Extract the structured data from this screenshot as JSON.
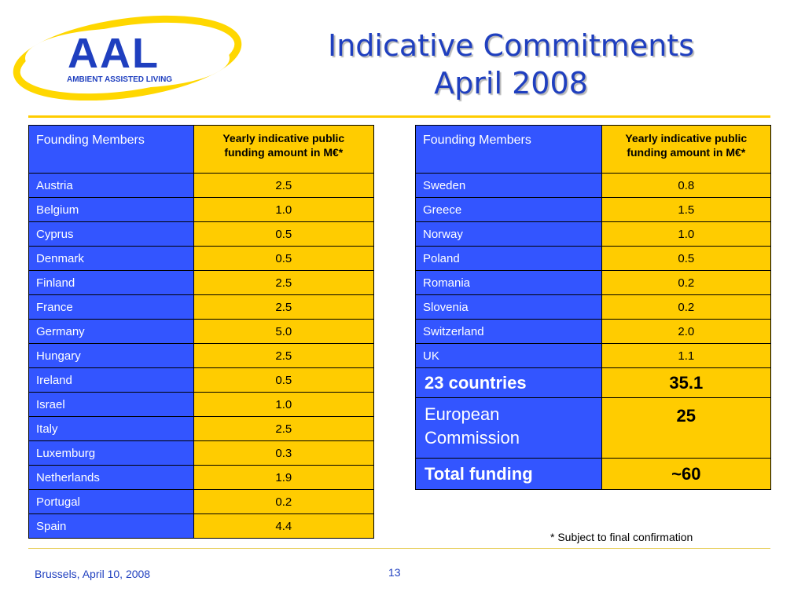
{
  "logo": {
    "text": "AAL",
    "tagline": "AMBIENT ASSISTED LIVING",
    "colors": {
      "blue": "#1f3fbf",
      "yellow": "#ffd700"
    }
  },
  "title": {
    "line1": "Indicative Commitments",
    "line2": "April 2008"
  },
  "table_header": {
    "col1": "Founding Members",
    "col2_line1": "Yearly indicative public",
    "col2_line2": "funding amount in M€*"
  },
  "left_table": [
    {
      "country": "Austria",
      "amount": "2.5"
    },
    {
      "country": "Belgium",
      "amount": "1.0"
    },
    {
      "country": "Cyprus",
      "amount": "0.5"
    },
    {
      "country": "Denmark",
      "amount": "0.5"
    },
    {
      "country": "Finland",
      "amount": "2.5"
    },
    {
      "country": "France",
      "amount": "2.5"
    },
    {
      "country": "Germany",
      "amount": "5.0"
    },
    {
      "country": "Hungary",
      "amount": "2.5"
    },
    {
      "country": "Ireland",
      "amount": "0.5"
    },
    {
      "country": "Israel",
      "amount": "1.0"
    },
    {
      "country": "Italy",
      "amount": "2.5"
    },
    {
      "country": "Luxemburg",
      "amount": "0.3"
    },
    {
      "country": "Netherlands",
      "amount": "1.9"
    },
    {
      "country": "Portugal",
      "amount": "0.2"
    },
    {
      "country": "Spain",
      "amount": "4.4"
    }
  ],
  "right_table": [
    {
      "country": "Sweden",
      "amount": "0.8"
    },
    {
      "country": "Greece",
      "amount": "1.5"
    },
    {
      "country": "Norway",
      "amount": "1.0"
    },
    {
      "country": "Poland",
      "amount": "0.5"
    },
    {
      "country": "Romania",
      "amount": "0.2"
    },
    {
      "country": "Slovenia",
      "amount": "0.2"
    },
    {
      "country": "Switzerland",
      "amount": "2.0"
    },
    {
      "country": "UK",
      "amount": "1.1"
    }
  ],
  "summary": {
    "countries_label": "23 countries",
    "countries_value": "35.1",
    "ec_label_line1": "European",
    "ec_label_line2": "Commission",
    "ec_value": "25",
    "total_label": "Total funding",
    "total_value": "~60"
  },
  "footnote": "* Subject to final confirmation",
  "footer": {
    "place_date": "Brussels, April 10, 2008",
    "page": "13"
  },
  "colors": {
    "cell_blue": "#3355ff",
    "cell_yellow": "#ffcc00",
    "title_blue": "#1f3fbf"
  }
}
